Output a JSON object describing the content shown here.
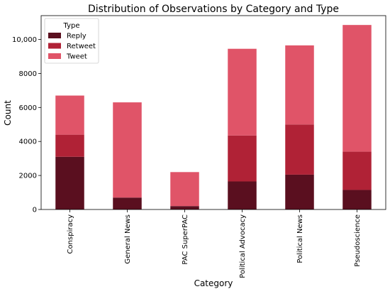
{
  "chart_data": {
    "type": "bar",
    "stacked": true,
    "title": "Distribution of Observations by Category and Type",
    "xlabel": "Category",
    "ylabel": "Count",
    "ylim": [
      0,
      11400
    ],
    "yticks": [
      0,
      2000,
      4000,
      6000,
      8000,
      10000
    ],
    "ytick_labels": [
      "0",
      "2000",
      "4000",
      "6000",
      "8000",
      "10,000"
    ],
    "categories": [
      "Conspiracy",
      "General News",
      "PAC SuperPAC",
      "Political Advocacy",
      "Political News",
      "Pseudoscience"
    ],
    "series": [
      {
        "name": "Reply",
        "color": "#5a0f1f",
        "values": [
          3100,
          700,
          200,
          1650,
          2050,
          1150
        ]
      },
      {
        "name": "Retweet",
        "color": "#b02236",
        "values": [
          1300,
          0,
          0,
          2700,
          2950,
          2250
        ]
      },
      {
        "name": "Tweet",
        "color": "#e05468",
        "values": [
          2300,
          5600,
          2000,
          5100,
          4650,
          7450
        ]
      }
    ],
    "legend": {
      "title": "Type",
      "placement": "top-left"
    },
    "grid": false
  }
}
